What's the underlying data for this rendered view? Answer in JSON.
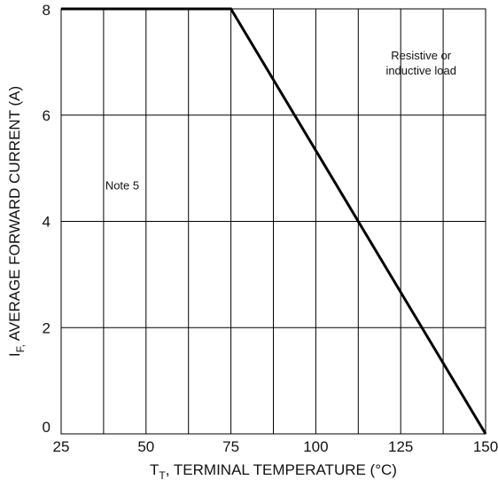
{
  "chart_data": {
    "type": "line",
    "x": [
      25,
      75,
      150
    ],
    "series": [
      {
        "values": [
          8,
          8,
          0
        ]
      }
    ],
    "xlim": [
      25,
      150
    ],
    "ylim": [
      0,
      8
    ],
    "x_ticks": [
      25,
      50,
      75,
      100,
      125,
      150
    ],
    "y_ticks": [
      0,
      2,
      4,
      6,
      8
    ],
    "x_tick_labels": [
      "25",
      "50",
      "75",
      "100",
      "125",
      "150"
    ],
    "y_tick_labels": [
      "0",
      "2",
      "4",
      "6",
      "8"
    ],
    "x_minor_grid": [
      37.5,
      62.5,
      87.5,
      112.5,
      137.5
    ],
    "xlabel": {
      "main": "T",
      "sub": "T",
      "rest": ", TERMINAL TEMPERATURE (°C)"
    },
    "ylabel": {
      "main": "I",
      "sub": "F,",
      "rest": "  AVERAGE FORWARD CURRENT (A)"
    },
    "annotations": [
      {
        "lines": [
          "Resistive or",
          "inductive load"
        ],
        "x": 131,
        "y": 7.05
      },
      {
        "lines": [
          "Note 5"
        ],
        "x": 43,
        "y": 4.6
      }
    ],
    "grid": true,
    "colors": {
      "line": "#000000",
      "grid": "#000000",
      "text": "#111111"
    }
  }
}
